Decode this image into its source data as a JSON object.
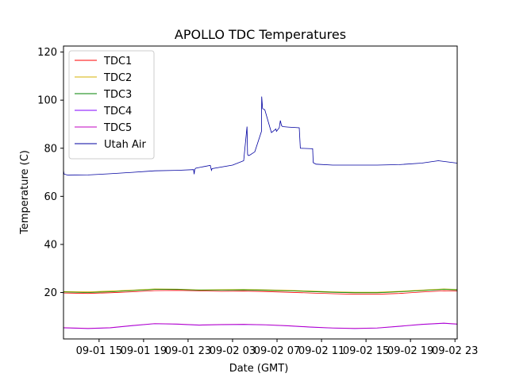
{
  "chart_data": {
    "type": "line",
    "title": "APOLLO TDC Temperatures",
    "xlabel": "Date (GMT)",
    "ylabel": "Temperature (C)",
    "x_unit": "hours since 09-01 00:00 GMT",
    "xlim": [
      11.8,
      47.2
    ],
    "ylim": [
      0.7,
      122.5
    ],
    "yticks": [
      20,
      40,
      60,
      80,
      100,
      120
    ],
    "xticks": [
      {
        "pos": 15,
        "label": "09-01 15"
      },
      {
        "pos": 19,
        "label": "09-01 19"
      },
      {
        "pos": 23,
        "label": "09-01 23"
      },
      {
        "pos": 27,
        "label": "09-02 03"
      },
      {
        "pos": 31,
        "label": "09-02 07"
      },
      {
        "pos": 35,
        "label": "09-02 11"
      },
      {
        "pos": 39,
        "label": "09-02 15"
      },
      {
        "pos": 43,
        "label": "09-02 19"
      },
      {
        "pos": 47,
        "label": "09-02 23"
      }
    ],
    "legend": "top-left",
    "grid": false,
    "series": [
      {
        "name": "TDC1",
        "color": "#ff0000",
        "x": [
          11.8,
          14,
          16,
          18,
          20,
          22,
          24,
          26,
          28,
          30,
          32,
          34,
          36,
          38,
          40,
          42,
          44,
          46,
          47.2
        ],
        "y": [
          19.8,
          19.6,
          19.9,
          20.3,
          20.8,
          20.9,
          20.7,
          20.5,
          20.6,
          20.4,
          20.1,
          19.8,
          19.5,
          19.3,
          19.3,
          19.6,
          20.2,
          20.7,
          20.6
        ]
      },
      {
        "name": "TDC2",
        "color": "#d4b000",
        "x": [
          11.8,
          14,
          16,
          18,
          20,
          22,
          24,
          26,
          28,
          30,
          32,
          34,
          36,
          38,
          40,
          42,
          44,
          46,
          47.2
        ],
        "y": [
          20.4,
          20.3,
          20.6,
          21.0,
          21.5,
          21.4,
          21.1,
          21.2,
          21.3,
          21.1,
          20.9,
          20.6,
          20.3,
          20.1,
          20.1,
          20.5,
          21.0,
          21.5,
          21.3
        ]
      },
      {
        "name": "TDC3",
        "color": "#008000",
        "x": [
          11.8,
          14,
          16,
          18,
          20,
          22,
          24,
          26,
          28,
          30,
          32,
          34,
          36,
          38,
          40,
          42,
          44,
          46,
          47.2
        ],
        "y": [
          20.2,
          20.0,
          20.3,
          20.8,
          21.3,
          21.3,
          21.0,
          21.0,
          21.1,
          20.9,
          20.7,
          20.4,
          20.1,
          19.9,
          19.9,
          20.3,
          20.8,
          21.3,
          21.1
        ]
      },
      {
        "name": "TDC4",
        "color": "#8000ff",
        "x": [
          11.8,
          14,
          16,
          18,
          20,
          22,
          24,
          26,
          28,
          30,
          32,
          34,
          36,
          38,
          40,
          42,
          44,
          46,
          47.2
        ],
        "y": [
          5.3,
          5.0,
          5.3,
          6.2,
          7.0,
          6.8,
          6.4,
          6.6,
          6.7,
          6.5,
          6.1,
          5.6,
          5.2,
          5.0,
          5.2,
          5.9,
          6.7,
          7.2,
          6.8
        ]
      },
      {
        "name": "TDC5",
        "color": "#c000c0",
        "x": [
          11.8,
          14,
          16,
          18,
          20,
          22,
          24,
          26,
          28,
          30,
          32,
          34,
          36,
          38,
          40,
          42,
          44,
          46,
          47.2
        ],
        "y": [
          5.4,
          5.1,
          5.4,
          6.3,
          7.1,
          6.9,
          6.5,
          6.7,
          6.8,
          6.6,
          6.2,
          5.7,
          5.3,
          5.1,
          5.3,
          6.0,
          6.8,
          7.3,
          6.9
        ]
      },
      {
        "name": "Utah Air",
        "color": "#0000a0",
        "x": [
          11.8,
          11.85,
          12.2,
          14,
          16,
          18,
          20,
          22,
          23.5,
          23.55,
          23.6,
          23.7,
          25,
          25.1,
          25.15,
          27,
          28,
          28.3,
          28.35,
          28.4,
          28.5,
          29,
          29.6,
          29.62,
          29.7,
          29.9,
          30.4,
          30.5,
          30.9,
          30.95,
          31.2,
          31.3,
          31.4,
          31.5,
          32,
          33,
          33.1,
          34.2,
          34.25,
          34.5,
          36,
          38,
          40,
          42,
          44,
          45.5,
          47.2
        ],
        "y": [
          70.8,
          69.3,
          68.8,
          68.9,
          69.4,
          70.0,
          70.6,
          70.8,
          71.1,
          69.2,
          71.2,
          71.7,
          72.9,
          70.8,
          71.5,
          73.0,
          74.8,
          89.0,
          77.5,
          77.0,
          77.0,
          78.5,
          87.0,
          101.5,
          96.5,
          96.0,
          88.0,
          86.5,
          88.0,
          87.0,
          88.5,
          91.5,
          89.5,
          89.0,
          88.8,
          88.5,
          80.0,
          79.8,
          74.0,
          73.4,
          73.0,
          73.0,
          73.0,
          73.2,
          73.8,
          74.8,
          73.8
        ]
      }
    ]
  }
}
